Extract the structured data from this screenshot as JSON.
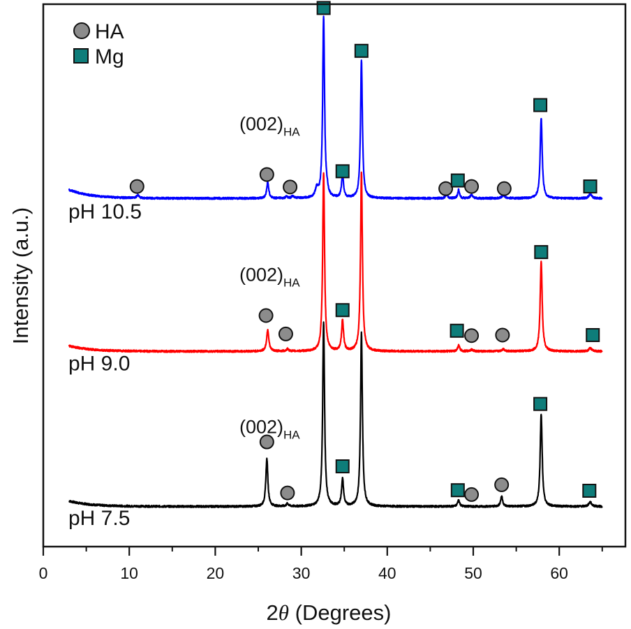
{
  "chart_data": {
    "type": "line",
    "title": "",
    "xlabel_prefix": "2",
    "xlabel_symbol": "θ",
    "xlabel_suffix": " (Degrees)",
    "ylabel": "Intensity (a.u.)",
    "xlim": [
      0,
      66
    ],
    "ylim": [
      0,
      100
    ],
    "x_ticks": [
      0,
      10,
      20,
      30,
      40,
      50,
      60
    ],
    "x_tick_labels": [
      "0",
      "10",
      "20",
      "30",
      "40",
      "50",
      "60"
    ],
    "x_minor_ticks": [
      5,
      15,
      25,
      35,
      45,
      55,
      65
    ],
    "y_ticks": [],
    "grid": false,
    "x_range_data": [
      3,
      65
    ],
    "legend": {
      "placement": "top-left",
      "entries": [
        {
          "label": "HA",
          "marker": "circle",
          "color": "#8c8c8c"
        },
        {
          "label": "Mg",
          "marker": "square",
          "color": "#0e7d7a"
        }
      ]
    },
    "annotation": {
      "main": "(002)",
      "sub": "HA"
    },
    "series": [
      {
        "name": "pH 7.5",
        "color": "#000000",
        "baseline": 7.4,
        "start_rise": 1.0,
        "peaks": [
          {
            "x": 26.0,
            "h": 8.8,
            "w": 0.14
          },
          {
            "x": 28.4,
            "h": 0.5,
            "w": 0.15
          },
          {
            "x": 32.6,
            "h": 34.0,
            "w": 0.13
          },
          {
            "x": 34.8,
            "h": 5.0,
            "w": 0.14
          },
          {
            "x": 37.0,
            "h": 32.0,
            "w": 0.13
          },
          {
            "x": 48.3,
            "h": 1.2,
            "w": 0.14
          },
          {
            "x": 53.3,
            "h": 1.9,
            "w": 0.14
          },
          {
            "x": 57.9,
            "h": 17.0,
            "w": 0.14
          },
          {
            "x": 63.6,
            "h": 0.8,
            "w": 0.2
          }
        ],
        "markers": [
          {
            "type": "HA",
            "x": 26.0,
            "y": 19.3
          },
          {
            "type": "HA",
            "x": 28.4,
            "y": 9.9
          },
          {
            "type": "Mg",
            "x": 34.8,
            "y": 14.8
          },
          {
            "type": "Mg",
            "x": 48.2,
            "y": 10.4
          },
          {
            "type": "HA",
            "x": 49.8,
            "y": 9.6
          },
          {
            "type": "HA",
            "x": 53.3,
            "y": 11.4
          },
          {
            "type": "Mg",
            "x": 57.8,
            "y": 26.3
          },
          {
            "type": "Mg",
            "x": 63.5,
            "y": 10.3
          }
        ],
        "label_y": 4.0,
        "annotation_y": 20.9
      },
      {
        "name": "pH 9.0",
        "color": "#ff0000",
        "baseline": 36.0,
        "start_rise": 1.0,
        "peaks": [
          {
            "x": 26.1,
            "h": 4.0,
            "w": 0.15
          },
          {
            "x": 28.4,
            "h": 0.4,
            "w": 0.15
          },
          {
            "x": 32.6,
            "h": 33.0,
            "w": 0.13
          },
          {
            "x": 34.8,
            "h": 5.6,
            "w": 0.14
          },
          {
            "x": 37.0,
            "h": 33.0,
            "w": 0.13
          },
          {
            "x": 48.3,
            "h": 1.1,
            "w": 0.14
          },
          {
            "x": 49.8,
            "h": 0.3,
            "w": 0.2
          },
          {
            "x": 53.5,
            "h": 0.4,
            "w": 0.2
          },
          {
            "x": 57.9,
            "h": 16.5,
            "w": 0.14
          },
          {
            "x": 63.6,
            "h": 0.6,
            "w": 0.2
          }
        ],
        "markers": [
          {
            "type": "HA",
            "x": 25.9,
            "y": 42.6
          },
          {
            "type": "HA",
            "x": 28.2,
            "y": 39.2
          },
          {
            "type": "Mg",
            "x": 34.8,
            "y": 43.6
          },
          {
            "type": "Mg",
            "x": 48.1,
            "y": 39.8
          },
          {
            "type": "HA",
            "x": 49.8,
            "y": 38.9
          },
          {
            "type": "HA",
            "x": 53.4,
            "y": 39.0
          },
          {
            "type": "Mg",
            "x": 57.9,
            "y": 54.3
          },
          {
            "type": "Mg",
            "x": 63.9,
            "y": 39.0
          }
        ],
        "label_y": 32.5,
        "annotation_y": 49.0
      },
      {
        "name": "pH 10.5",
        "color": "#0000ff",
        "baseline": 64.2,
        "start_rise": 1.6,
        "peaks": [
          {
            "x": 11.0,
            "h": 0.6,
            "w": 0.15
          },
          {
            "x": 26.1,
            "h": 3.0,
            "w": 0.14
          },
          {
            "x": 28.3,
            "h": 0.3,
            "w": 0.15
          },
          {
            "x": 29.0,
            "h": 0.4,
            "w": 0.15
          },
          {
            "x": 31.8,
            "h": 1.6,
            "w": 0.2
          },
          {
            "x": 32.6,
            "h": 33.5,
            "w": 0.13
          },
          {
            "x": 33.0,
            "h": 0.8,
            "w": 0.15
          },
          {
            "x": 34.8,
            "h": 4.3,
            "w": 0.14
          },
          {
            "x": 37.0,
            "h": 25.5,
            "w": 0.13
          },
          {
            "x": 46.9,
            "h": 0.7,
            "w": 0.15
          },
          {
            "x": 48.3,
            "h": 1.6,
            "w": 0.12
          },
          {
            "x": 49.8,
            "h": 0.7,
            "w": 0.15
          },
          {
            "x": 53.5,
            "h": 0.6,
            "w": 0.2
          },
          {
            "x": 57.9,
            "h": 14.8,
            "w": 0.14
          },
          {
            "x": 63.6,
            "h": 0.8,
            "w": 0.2
          }
        ],
        "markers": [
          {
            "type": "HA",
            "x": 10.9,
            "y": 66.4
          },
          {
            "type": "HA",
            "x": 26.0,
            "y": 68.6
          },
          {
            "type": "HA",
            "x": 28.7,
            "y": 66.3
          },
          {
            "type": "Mg",
            "x": 32.6,
            "y": 99.3
          },
          {
            "type": "Mg",
            "x": 34.8,
            "y": 69.2
          },
          {
            "type": "Mg",
            "x": 37.0,
            "y": 91.4
          },
          {
            "type": "HA",
            "x": 46.8,
            "y": 66.0
          },
          {
            "type": "Mg",
            "x": 48.2,
            "y": 67.5
          },
          {
            "type": "HA",
            "x": 49.8,
            "y": 66.4
          },
          {
            "type": "HA",
            "x": 53.6,
            "y": 66.0
          },
          {
            "type": "Mg",
            "x": 57.8,
            "y": 81.4
          },
          {
            "type": "Mg",
            "x": 63.6,
            "y": 66.4
          }
        ],
        "label_y": 60.5,
        "annotation_y": 76.8
      }
    ]
  }
}
